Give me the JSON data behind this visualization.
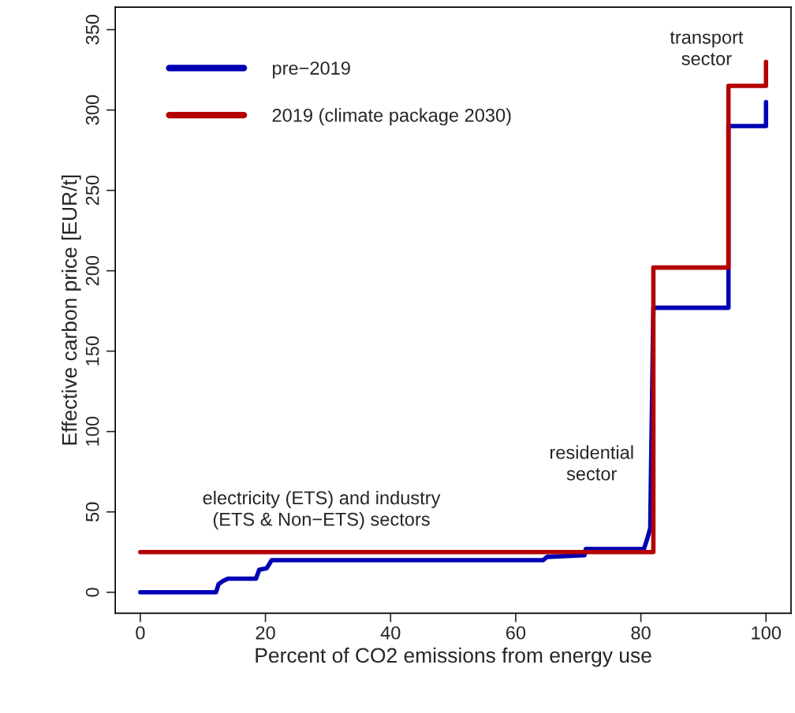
{
  "chart_data": {
    "type": "line",
    "xlabel": "Percent of CO2 emissions from energy use",
    "ylabel": "Effective carbon price [EUR/t]",
    "xlim": [
      -4,
      104
    ],
    "ylim": [
      -13,
      364
    ],
    "xticks": [
      0,
      20,
      40,
      60,
      80,
      100
    ],
    "yticks": [
      0,
      50,
      100,
      150,
      200,
      250,
      300,
      350
    ],
    "grid": false,
    "legend": "top left",
    "line_style": "solid",
    "marker": "none",
    "series": [
      {
        "name": "pre−2019",
        "color": "#0000b4",
        "x": [
          0,
          12.1,
          12.5,
          13.2,
          14,
          18.5,
          19,
          20.2,
          21,
          64.4,
          65,
          71,
          71.2,
          80.5,
          81,
          81.5,
          81.6,
          82,
          94,
          94,
          100,
          100
        ],
        "values": [
          0,
          0,
          5,
          7,
          8.5,
          8.5,
          14,
          15,
          20,
          20,
          22,
          23,
          27,
          27,
          33,
          40,
          70,
          177,
          177,
          290,
          290,
          305
        ]
      },
      {
        "name": "2019 (climate package 2030)",
        "color": "#b40000",
        "x": [
          0,
          82,
          82,
          94,
          94,
          100,
          100
        ],
        "values": [
          25,
          25,
          202,
          202,
          315,
          315,
          330
        ]
      }
    ],
    "annotations": [
      "electricity (ETS) and industry\n(ETS & Non−ETS) sectors",
      "residential\nsector",
      "transport\nsector"
    ]
  }
}
